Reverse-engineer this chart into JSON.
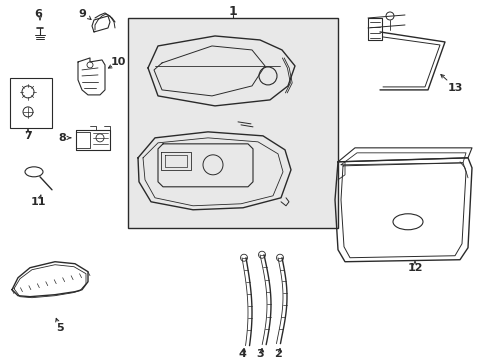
{
  "bg_color": "#ffffff",
  "line_color": "#2a2a2a",
  "box_bg": "#ebebeb",
  "lw": 0.8
}
